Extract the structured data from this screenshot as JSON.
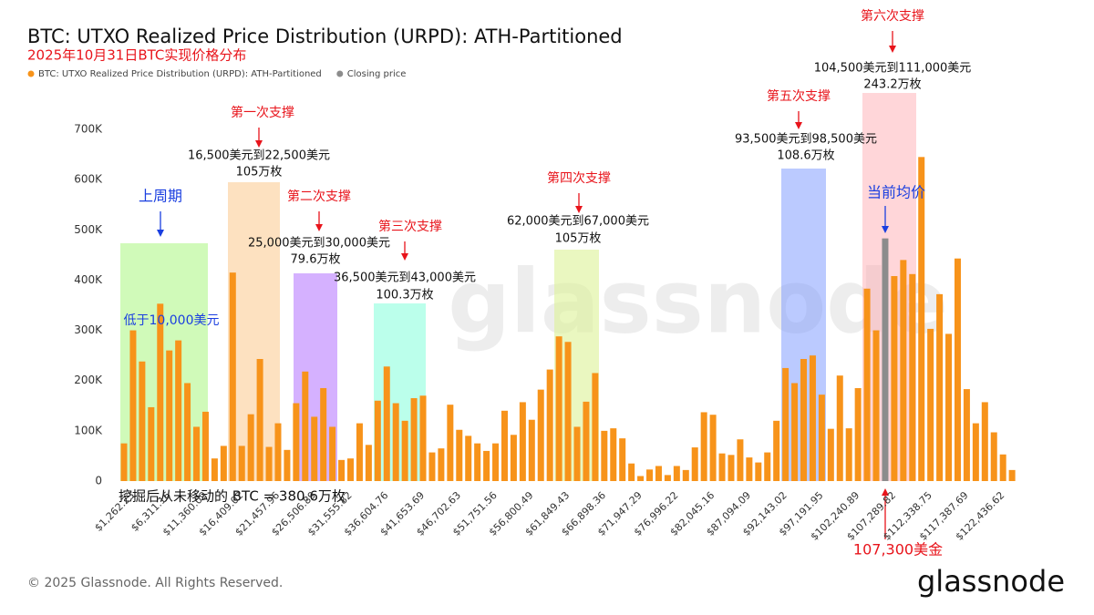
{
  "chart_data": {
    "type": "bar",
    "title": "BTC: UTXO Realized Price Distribution (URPD): ATH-Partitioned",
    "subtitle": "2025年10月31日BTC实现价格分布",
    "categories": [
      null,
      "$1,262.23",
      null,
      null,
      null,
      "$6,311.16",
      null,
      null,
      null,
      "$11,360.09",
      null,
      null,
      null,
      "$16,409.02",
      null,
      null,
      null,
      "$21,457.96",
      null,
      null,
      null,
      "$26,506.89",
      null,
      null,
      null,
      "$31,555.82",
      null,
      null,
      null,
      "$36,604.76",
      null,
      null,
      null,
      "$41,653.69",
      null,
      null,
      null,
      "$46,702.63",
      null,
      null,
      null,
      "$51,751.56",
      null,
      null,
      null,
      "$56,800.49",
      null,
      null,
      null,
      "$61,849.43",
      null,
      null,
      null,
      "$66,898.36",
      null,
      null,
      null,
      "$71,947.29",
      null,
      null,
      null,
      "$76,996.22",
      null,
      null,
      null,
      "$82,045.16",
      null,
      null,
      null,
      "$87,094.09",
      null,
      null,
      null,
      "$92,143.02",
      null,
      null,
      null,
      "$97,191.95",
      null,
      null,
      null,
      "$102,240.89",
      null,
      null,
      null,
      "$107,289.82",
      null,
      null,
      null,
      "$112,338.75",
      null,
      null,
      null,
      "$117,387.69",
      null,
      null,
      null,
      "$122,436.62",
      null
    ],
    "series": [
      {
        "name": "BTC: UTXO Realized Price Distribution (URPD): ATH-Partitioned",
        "color": "#f7931a",
        "values": [
          75000,
          300000,
          238000,
          147000,
          353000,
          260000,
          280000,
          195000,
          108000,
          138000,
          45000,
          70000,
          415000,
          70000,
          133000,
          243000,
          68000,
          115000,
          62000,
          155000,
          218000,
          128000,
          185000,
          108000,
          42000,
          45000,
          115000,
          72000,
          160000,
          228000,
          155000,
          120000,
          165000,
          170000,
          57000,
          65000,
          152000,
          102000,
          90000,
          75000,
          60000,
          75000,
          140000,
          92000,
          157000,
          122000,
          182000,
          222000,
          288000,
          277000,
          108000,
          158000,
          215000,
          100000,
          105000,
          85000,
          35000,
          10000,
          23000,
          30000,
          12000,
          30000,
          22000,
          67000,
          137000,
          132000,
          55000,
          52000,
          83000,
          47000,
          37000,
          57000,
          120000,
          225000,
          195000,
          243000,
          250000,
          172000,
          104000,
          210000,
          105000,
          185000,
          383000,
          300000,
          null,
          408000,
          440000,
          412000,
          645000,
          303000,
          372000,
          293000,
          443000,
          183000,
          115000,
          157000,
          97000,
          53000,
          22000
        ]
      },
      {
        "name": "Closing price",
        "color": "#8c8c8c",
        "values": [
          null,
          null,
          null,
          null,
          null,
          null,
          null,
          null,
          null,
          null,
          null,
          null,
          null,
          null,
          null,
          null,
          null,
          null,
          null,
          null,
          null,
          null,
          null,
          null,
          null,
          null,
          null,
          null,
          null,
          null,
          null,
          null,
          null,
          null,
          null,
          null,
          null,
          null,
          null,
          null,
          null,
          null,
          null,
          null,
          null,
          null,
          null,
          null,
          null,
          null,
          null,
          null,
          null,
          null,
          null,
          null,
          null,
          null,
          null,
          null,
          null,
          null,
          null,
          null,
          null,
          null,
          null,
          null,
          null,
          null,
          null,
          null,
          null,
          null,
          null,
          null,
          null,
          null,
          null,
          null,
          null,
          null,
          null,
          null,
          483000,
          null,
          null,
          null,
          null,
          null,
          null,
          null,
          null,
          null,
          null,
          null,
          null,
          null,
          null
        ]
      }
    ],
    "ylim": [
      0,
      770000
    ],
    "yticks": [
      0,
      {
        "value": 100000,
        "label": "100K"
      },
      {
        "value": 200000,
        "label": "200K"
      },
      {
        "value": 300000,
        "label": "300K"
      },
      {
        "value": 400000,
        "label": "400K"
      },
      {
        "value": 500000,
        "label": "500K"
      },
      {
        "value": 600000,
        "label": "600K"
      },
      {
        "value": 700000,
        "label": "700K"
      }
    ],
    "grid": false,
    "supports": [
      {
        "label": "第一次支撑",
        "range": "16,500美元到22,500美元",
        "amount": "105万枚"
      },
      {
        "label": "第二次支撑",
        "range": "25,000美元到30,000美元",
        "amount": "79.6万枚"
      },
      {
        "label": "第三次支撑",
        "range": "36,500美元到43,000美元",
        "amount": "100.3万枚"
      },
      {
        "label": "第四次支撑",
        "range": "62,000美元到67,000美元",
        "amount": "105万枚"
      },
      {
        "label": "第五次支撑",
        "range": "93,500美元到98,500美元",
        "amount": "108.6万枚"
      },
      {
        "label": "第六次支撑",
        "range": "104,500美元到111,000美元",
        "amount": "243.2万枚"
      }
    ],
    "cycle_label": "上周期",
    "cycle_range": "低于10,000美元",
    "avg_label": "当前均价",
    "avg_price": "107,300美金",
    "unmoved_note": "挖掘后从未移动的 BTC = 380.6万枚",
    "copyright": "© 2025 Glassnode. All Rights Reserved.",
    "logo": "glassnode"
  }
}
